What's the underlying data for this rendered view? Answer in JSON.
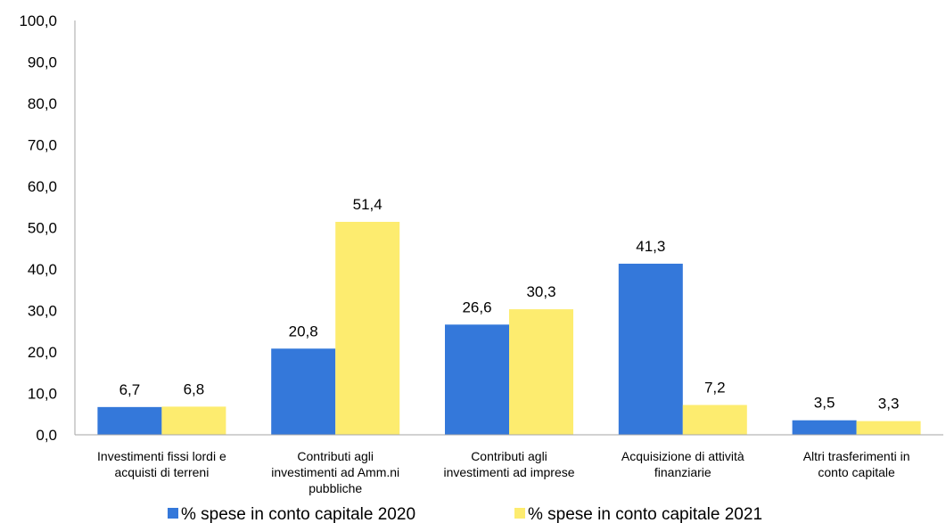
{
  "chart_data": {
    "type": "bar",
    "categories": [
      [
        "Investimenti fissi lordi e",
        "acquisti di terreni"
      ],
      [
        "Contributi agli",
        "investimenti ad Amm.ni",
        "pubbliche"
      ],
      [
        "Contributi agli",
        "investimenti ad imprese"
      ],
      [
        "Acquisizione di attività",
        "finanziarie"
      ],
      [
        "Altri trasferimenti in",
        "conto capitale"
      ]
    ],
    "series": [
      {
        "name": "% spese in conto capitale 2020",
        "color": "#3478DA",
        "values": [
          6.7,
          20.8,
          26.6,
          41.3,
          3.5
        ],
        "labels": [
          "6,7",
          "20,8",
          "26,6",
          "41,3",
          "3,5"
        ]
      },
      {
        "name": "% spese in conto capitale 2021",
        "color": "#FDEC6F",
        "values": [
          6.8,
          51.4,
          30.3,
          7.2,
          3.3
        ],
        "labels": [
          "6,8",
          "51,4",
          "30,3",
          "7,2",
          "3,3"
        ]
      }
    ],
    "ylim": [
      0,
      100
    ],
    "yticks": [
      0,
      10,
      20,
      30,
      40,
      50,
      60,
      70,
      80,
      90,
      100
    ],
    "ytick_labels": [
      "0,0",
      "10,0",
      "20,0",
      "30,0",
      "40,0",
      "50,0",
      "60,0",
      "70,0",
      "80,0",
      "90,0",
      "100,0"
    ],
    "grid": false,
    "legend_position": "bottom"
  }
}
